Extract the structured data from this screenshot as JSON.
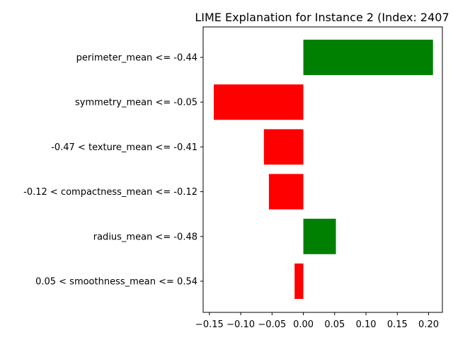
{
  "chart_data": {
    "type": "bar",
    "orientation": "horizontal",
    "title": "LIME Explanation for Instance 2 (Index: 2407",
    "xlabel": "",
    "ylabel": "",
    "xlim": [
      -0.16,
      0.222
    ],
    "xticks": [
      -0.15,
      -0.1,
      -0.05,
      0.0,
      0.05,
      0.1,
      0.15,
      0.2
    ],
    "xtick_labels": [
      "−0.15",
      "−0.10",
      "−0.05",
      "0.00",
      "0.05",
      "0.10",
      "0.15",
      "0.20"
    ],
    "grid": false,
    "positive_color": "#008000",
    "negative_color": "#ff0000",
    "categories": [
      "perimeter_mean <= -0.44",
      "symmetry_mean <= -0.05",
      "-0.47 < texture_mean <= -0.41",
      "-0.12 < compactness_mean <= -0.12",
      "radius_mean <= -0.48",
      "0.05 < smoothness_mean <= 0.54"
    ],
    "values": [
      0.207,
      -0.143,
      -0.063,
      -0.055,
      0.052,
      -0.014
    ]
  }
}
